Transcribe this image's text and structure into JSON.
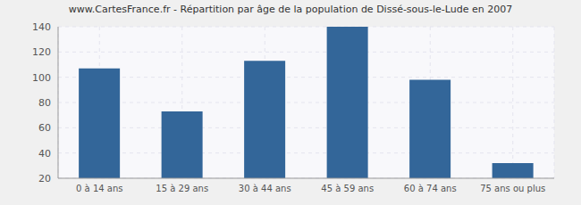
{
  "chart_data": {
    "type": "bar",
    "title": "www.CartesFrance.fr - Répartition par âge de la population de Dissé-sous-le-Lude en 2007",
    "categories": [
      "0 à 14 ans",
      "15 à 29 ans",
      "30 à 44 ans",
      "45 à 59 ans",
      "60 à 74 ans",
      "75 ans ou plus"
    ],
    "values": [
      107,
      73,
      113,
      140,
      98,
      32
    ],
    "color": "#336699",
    "ylim": [
      20,
      140
    ],
    "yticks": [
      20,
      40,
      60,
      80,
      100,
      120,
      140
    ],
    "grid": true
  }
}
